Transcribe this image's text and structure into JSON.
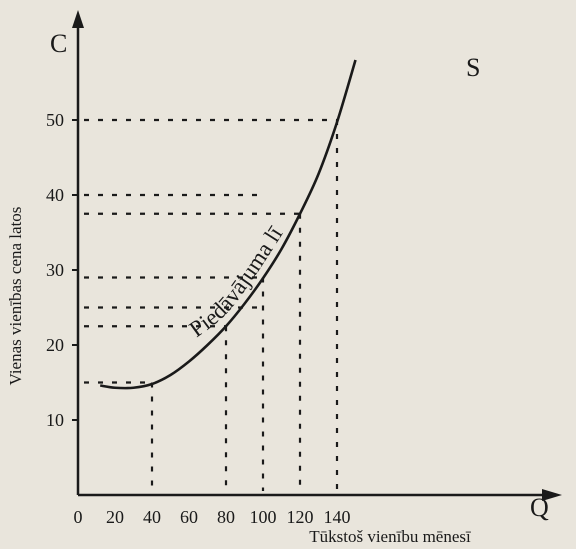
{
  "chart_data": {
    "type": "line",
    "title": "",
    "xlabel": "Tūkstoš vienību mēnesī",
    "ylabel": "Vienas vienības cena latos",
    "x_axis_letter": "Q",
    "y_axis_letter": "C",
    "curve_label": "Piedāvājuma līkne",
    "curve_end_label": "S",
    "x_ticks": [
      "0",
      "20",
      "40",
      "60",
      "80",
      "100",
      "120",
      "140"
    ],
    "y_ticks": [
      "10",
      "20",
      "30",
      "40",
      "50"
    ],
    "xlim": [
      0,
      150
    ],
    "ylim": [
      0,
      55
    ],
    "grid": "dotted guide lines to the curve",
    "series": [
      {
        "x": [
          12,
          20,
          30,
          40,
          50,
          60,
          70,
          80,
          90,
          100,
          110,
          120,
          130,
          140,
          150
        ],
        "y": [
          14.6,
          14.3,
          14.3,
          14.8,
          16,
          17.8,
          20,
          22.5,
          25.5,
          28.9,
          32.8,
          37.5,
          42.8,
          49.7,
          58
        ]
      }
    ],
    "guides": [
      {
        "x": 40,
        "y": 15
      },
      {
        "x": 80,
        "y": 22.5
      },
      {
        "x": 100,
        "y": 29
      },
      {
        "x": 120,
        "y": 37.5
      },
      {
        "x": 140,
        "y": 50
      }
    ],
    "extra_y_guides": [
      25,
      40
    ]
  }
}
